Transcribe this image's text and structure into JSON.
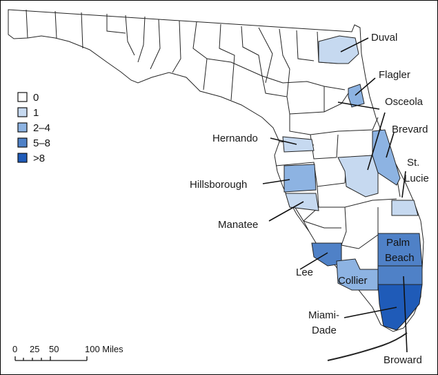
{
  "colors": {
    "c0": "#ffffff",
    "c1": "#c6d9f0",
    "c2": "#8db3e2",
    "c3": "#4f81c7",
    "c4": "#1f5bb8"
  },
  "legend": [
    {
      "label": "0",
      "color": "#ffffff"
    },
    {
      "label": "1",
      "color": "#c6d9f0"
    },
    {
      "label": "2–4",
      "color": "#8db3e2"
    },
    {
      "label": "5–8",
      "color": "#4f81c7"
    },
    {
      "label": ">8",
      "color": "#1f5bb8"
    }
  ],
  "labels": {
    "duval": "Duval",
    "flagler": "Flagler",
    "osceola": "Osceola",
    "brevard": "Brevard",
    "hernando": "Hernando",
    "st_lucie_1": "St.",
    "st_lucie_2": "Lucie",
    "hillsborough": "Hillsborough",
    "manatee": "Manatee",
    "palm_beach_1": "Palm",
    "palm_beach_2": "Beach",
    "lee": "Lee",
    "collier": "Collier",
    "miami_dade_1": "Miami-",
    "miami_dade_2": "Dade",
    "broward": "Broward"
  },
  "scale": {
    "ticks": [
      "0",
      "25",
      "50",
      "100 Miles"
    ]
  }
}
